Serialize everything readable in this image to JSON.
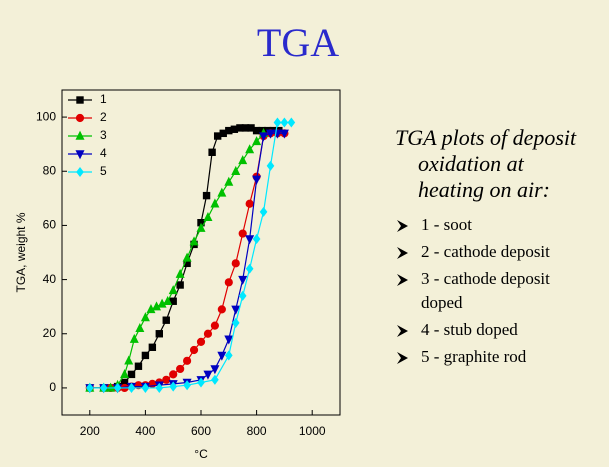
{
  "title": "TGA",
  "chart_data": {
    "type": "line",
    "x_label": "°C",
    "y_label": "TGA, weight %",
    "xlim": [
      100,
      1100
    ],
    "xticks": [
      200,
      400,
      600,
      800,
      1000
    ],
    "ylim": [
      -10,
      110
    ],
    "yticks": [
      0,
      20,
      40,
      60,
      80,
      100
    ],
    "legend": "upper left",
    "series": [
      {
        "name": "1",
        "color": "#000000",
        "marker": "square",
        "x": [
          200,
          250,
          275,
          300,
          325,
          350,
          375,
          400,
          425,
          450,
          475,
          500,
          525,
          550,
          575,
          600,
          620,
          640,
          660,
          680,
          700,
          720,
          740,
          760,
          780,
          800,
          820,
          840,
          860,
          880
        ],
        "values": [
          0,
          0,
          0,
          0.5,
          2,
          5,
          8,
          12,
          15,
          20,
          25,
          32,
          38,
          46,
          53,
          61,
          71,
          87,
          93,
          94,
          95,
          95.5,
          96,
          96,
          96,
          95,
          95,
          95,
          95,
          95
        ]
      },
      {
        "name": "2",
        "color": "#e00000",
        "marker": "circle",
        "x": [
          200,
          250,
          275,
          300,
          325,
          350,
          375,
          400,
          425,
          450,
          475,
          500,
          525,
          550,
          575,
          600,
          625,
          650,
          675,
          700,
          725,
          750,
          775,
          800,
          825,
          850,
          875,
          900
        ],
        "values": [
          0,
          0,
          0,
          0,
          0,
          0.5,
          1,
          1,
          1.5,
          2,
          3,
          5,
          7,
          10,
          14,
          17,
          20,
          23,
          29,
          39,
          46,
          57,
          68,
          78,
          93,
          94,
          94,
          94
        ]
      },
      {
        "name": "3",
        "color": "#00c000",
        "marker": "triangle-up",
        "x": [
          200,
          250,
          275,
          300,
          325,
          340,
          360,
          380,
          400,
          420,
          440,
          460,
          480,
          500,
          525,
          550,
          575,
          600,
          625,
          650,
          675,
          700,
          725,
          750,
          775,
          800,
          825
        ],
        "values": [
          0,
          0,
          0,
          1,
          5,
          10,
          18,
          22,
          26,
          29,
          30,
          31,
          32,
          36,
          42,
          48,
          54,
          59,
          63,
          68,
          72,
          76,
          80,
          84,
          88,
          91,
          94
        ]
      },
      {
        "name": "4",
        "color": "#0000c0",
        "marker": "triangle-down",
        "x": [
          200,
          250,
          300,
          350,
          400,
          450,
          500,
          550,
          600,
          625,
          650,
          675,
          700,
          725,
          750,
          775,
          800,
          825,
          850,
          875,
          900
        ],
        "values": [
          0,
          0,
          0,
          0.5,
          0.5,
          1,
          1.5,
          2,
          3,
          5,
          7,
          12,
          18,
          29,
          40,
          55,
          77,
          93,
          94,
          94,
          94
        ]
      },
      {
        "name": "5",
        "color": "#00e8ff",
        "marker": "diamond",
        "x": [
          200,
          250,
          300,
          350,
          400,
          450,
          500,
          550,
          600,
          650,
          700,
          725,
          750,
          775,
          800,
          825,
          850,
          875,
          900,
          925
        ],
        "values": [
          0,
          0,
          0,
          0,
          0,
          0,
          0.5,
          1,
          2,
          3,
          12,
          24,
          34,
          44,
          55,
          65,
          82,
          98,
          98,
          98
        ]
      }
    ]
  },
  "text": {
    "heading": [
      "TGA plots of deposit",
      "oxidation at",
      "heating on air:"
    ],
    "bullets": [
      [
        "1 - soot"
      ],
      [
        "2 - cathode deposit"
      ],
      [
        "3 - cathode deposit",
        "doped"
      ],
      [
        "4 - stub doped"
      ],
      [
        "5 - graphite rod"
      ]
    ]
  }
}
